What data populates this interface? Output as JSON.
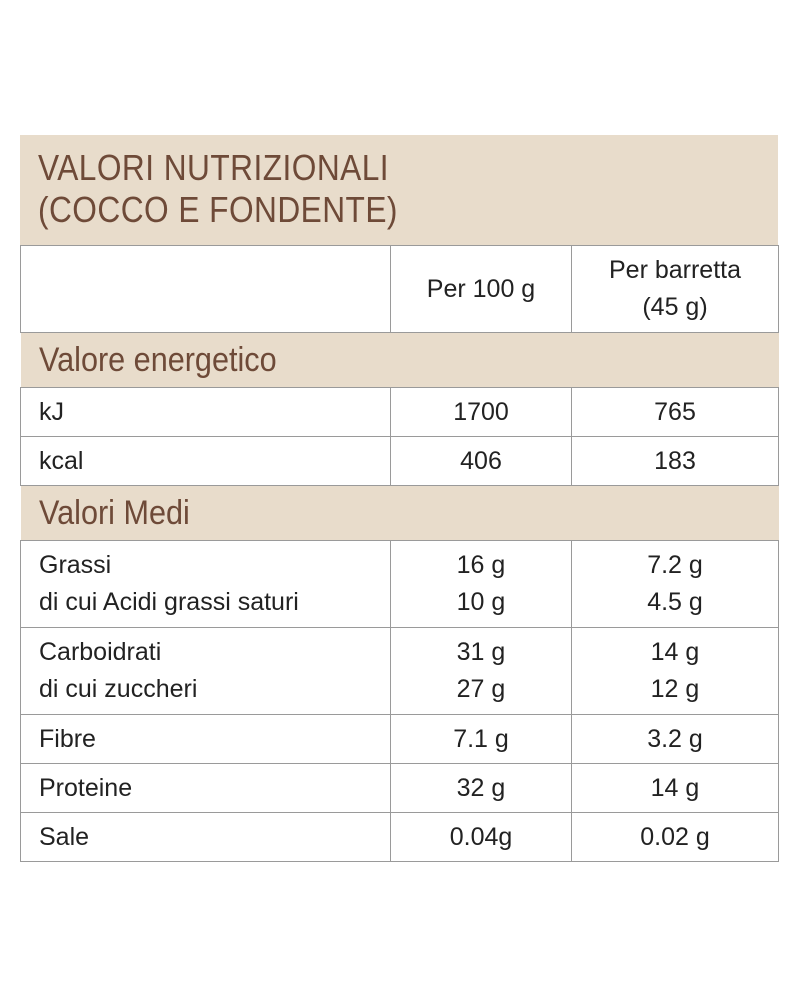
{
  "title": [
    "VALORI NUTRIZIONALI",
    "(COCCO E FONDENTE)"
  ],
  "columns": [
    [
      "Per 100 g"
    ],
    [
      "Per barretta",
      "(45 g)"
    ]
  ],
  "sections": [
    {
      "heading": "Valore energetico",
      "rows": [
        {
          "label": [
            "kJ"
          ],
          "per_100g": [
            "1700"
          ],
          "per_bar": [
            "765"
          ]
        },
        {
          "label": [
            "kcal"
          ],
          "per_100g": [
            "406"
          ],
          "per_bar": [
            "183"
          ]
        }
      ]
    },
    {
      "heading": "Valori Medi",
      "rows": [
        {
          "label": [
            "Grassi",
            "di cui Acidi grassi saturi"
          ],
          "per_100g": [
            "16 g",
            "10 g"
          ],
          "per_bar": [
            "7.2 g",
            "4.5 g"
          ]
        },
        {
          "label": [
            "Carboidrati",
            "di cui zuccheri"
          ],
          "per_100g": [
            "31 g",
            "27 g"
          ],
          "per_bar": [
            "14 g",
            "12 g"
          ]
        },
        {
          "label": [
            "Fibre"
          ],
          "per_100g": [
            "7.1 g"
          ],
          "per_bar": [
            "3.2 g"
          ]
        },
        {
          "label": [
            "Proteine"
          ],
          "per_100g": [
            "32 g"
          ],
          "per_bar": [
            "14 g"
          ]
        },
        {
          "label": [
            "Sale"
          ],
          "per_100g": [
            "0.04g"
          ],
          "per_bar": [
            "0.02 g"
          ]
        }
      ]
    }
  ]
}
